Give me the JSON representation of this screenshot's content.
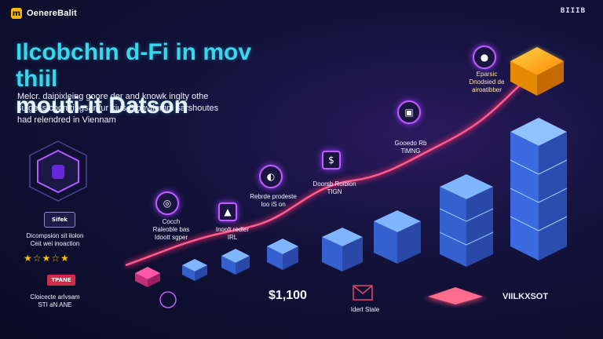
{
  "brand": {
    "badge": "m",
    "name": "OenereBalit"
  },
  "corner_text": "BIIIB",
  "headline": {
    "line1": "Ilcobchin d-Fi in mov thiil",
    "line2": "mouti-it Datson"
  },
  "description": [
    "Melcr. daipixleing goore der and knowk inglty othe",
    "suigess coomtingsar fur kius Bibovtinmm sarshoutes",
    "had relendred in Viennam"
  ],
  "left_panel": {
    "hex_icon": "hexagon-shield-icon",
    "card_label": "Sifek",
    "card_caption": "Dicompsion sit ilolon\nCeit wei inoaction",
    "stars": "★☆★☆★",
    "bottom_card_label": "TPANE",
    "bottom_caption": "Cloicecte arlvsam\nSTI aN ANE"
  },
  "labels": [
    {
      "text": "Cocch\nRaleoble bas\nIdoott sgper"
    },
    {
      "text": "Inoolt redler\nIRL"
    },
    {
      "text": "Rebrde prodeste\nIoo iS on"
    },
    {
      "text": "Doorsb Roiblon\nTIGN"
    },
    {
      "text": "Gooedo Rb\nTiMNG"
    },
    {
      "text": "Eparsic\nDnodsied de\nairoatibber"
    }
  ],
  "price": "$1,100",
  "bottom_mid_label": "Idert Stale",
  "bottom_right_label": "VIILKXSOT",
  "colors": {
    "accent": "#38d7f0",
    "line": "#ff2e6a",
    "block": "#3a7ff5",
    "gold": "#f5b700"
  }
}
